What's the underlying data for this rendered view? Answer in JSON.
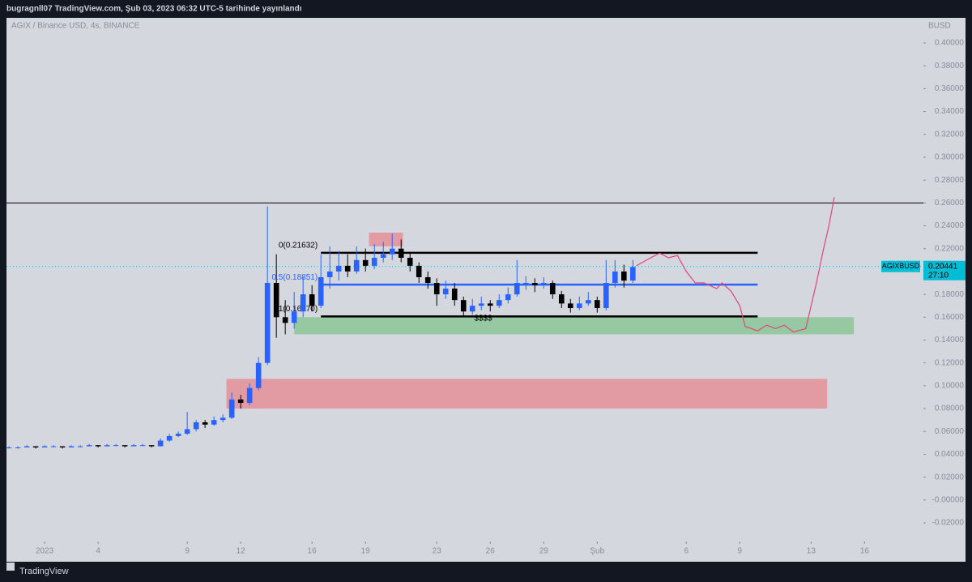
{
  "header": {
    "publisher": "bugragnll07 TradingView.com, Şub 03, 2023 06:32 UTC-5 tarihinde yayınlandı"
  },
  "footer": {
    "brand": "TradingView"
  },
  "chart_data": {
    "type": "candlestick",
    "title": "AGIX / Binance USD, 4s, BINANCE",
    "y_axis_label": "BUSD",
    "up_color": "#2962ff",
    "down_color": "#000000",
    "xlim": [
      -1.14,
      50.3
    ],
    "xticks": [
      {
        "value": 1,
        "label": "2023"
      },
      4,
      9,
      12,
      16,
      19,
      23,
      26,
      29,
      {
        "value": 32,
        "label": "Şub"
      },
      {
        "value": 37,
        "label": "6"
      },
      {
        "value": 40,
        "label": "9"
      },
      {
        "value": 44,
        "label": "13"
      },
      {
        "value": 47,
        "label": "16"
      }
    ],
    "ylim": [
      -0.0363,
      0.422
    ],
    "yticks": [
      {
        "value": 0.4,
        "label": "0.40000"
      },
      {
        "value": 0.38,
        "label": "0.38000"
      },
      {
        "value": 0.36,
        "label": "0.36000"
      },
      {
        "value": 0.34,
        "label": "0.34000"
      },
      {
        "value": 0.32,
        "label": "0.32000"
      },
      {
        "value": 0.3,
        "label": "0.30000"
      },
      {
        "value": 0.28,
        "label": "0.28000"
      },
      {
        "value": 0.26,
        "label": "0.26000"
      },
      {
        "value": 0.24,
        "label": "0.24000"
      },
      {
        "value": 0.22,
        "label": "0.22000"
      },
      {
        "value": 0.2,
        "label": "0.20000"
      },
      {
        "value": 0.18,
        "label": "0.18000"
      },
      {
        "value": 0.16,
        "label": "0.16000"
      },
      {
        "value": 0.14,
        "label": "0.14000"
      },
      {
        "value": 0.12,
        "label": "0.12000"
      },
      {
        "value": 0.1,
        "label": "0.10000"
      },
      {
        "value": 0.08,
        "label": "0.08000"
      },
      {
        "value": 0.06,
        "label": "0.06000"
      },
      {
        "value": 0.04,
        "label": "0.04000"
      },
      {
        "value": 0.02,
        "label": "0.02000"
      },
      {
        "value": 0,
        "label": "-0.00000"
      },
      {
        "value": -0.02,
        "label": "-0.02000"
      }
    ],
    "x": [
      -1,
      -0.5,
      0,
      0.5,
      1,
      1.5,
      2,
      2.5,
      3,
      3.5,
      4,
      4.5,
      5,
      5.5,
      6,
      6.5,
      7,
      7.5,
      8,
      8.5,
      9,
      9.5,
      10,
      10.5,
      11,
      11.5,
      12,
      12.5,
      13,
      13.5,
      14,
      14.5,
      15,
      15.5,
      16,
      16.5,
      17,
      17.5,
      18,
      18.5,
      19,
      19.5,
      20,
      20.5,
      21,
      21.5,
      22,
      22.5,
      23,
      23.5,
      24,
      24.5,
      25,
      25.5,
      26,
      26.5,
      27,
      27.5,
      28,
      28.5,
      29,
      29.5,
      30,
      30.5,
      31,
      31.5,
      32,
      32.5,
      33,
      33.5,
      34
    ],
    "ohlc": [
      [
        0.046,
        0.047,
        0.045,
        0.046
      ],
      [
        0.046,
        0.047,
        0.045,
        0.046
      ],
      [
        0.046,
        0.048,
        0.046,
        0.047
      ],
      [
        0.047,
        0.047,
        0.045,
        0.046
      ],
      [
        0.046,
        0.048,
        0.046,
        0.047
      ],
      [
        0.047,
        0.048,
        0.046,
        0.047
      ],
      [
        0.047,
        0.047,
        0.045,
        0.046
      ],
      [
        0.046,
        0.048,
        0.046,
        0.047
      ],
      [
        0.047,
        0.048,
        0.046,
        0.047
      ],
      [
        0.047,
        0.049,
        0.047,
        0.048
      ],
      [
        0.048,
        0.048,
        0.046,
        0.047
      ],
      [
        0.047,
        0.049,
        0.047,
        0.048
      ],
      [
        0.048,
        0.049,
        0.047,
        0.048
      ],
      [
        0.048,
        0.048,
        0.046,
        0.047
      ],
      [
        0.047,
        0.049,
        0.047,
        0.048
      ],
      [
        0.048,
        0.049,
        0.047,
        0.048
      ],
      [
        0.048,
        0.048,
        0.046,
        0.047
      ],
      [
        0.047,
        0.054,
        0.047,
        0.052
      ],
      [
        0.052,
        0.058,
        0.051,
        0.056
      ],
      [
        0.056,
        0.06,
        0.055,
        0.058
      ],
      [
        0.058,
        0.077,
        0.057,
        0.062
      ],
      [
        0.062,
        0.07,
        0.06,
        0.068
      ],
      [
        0.068,
        0.07,
        0.063,
        0.066
      ],
      [
        0.066,
        0.073,
        0.065,
        0.07
      ],
      [
        0.07,
        0.075,
        0.068,
        0.072
      ],
      [
        0.072,
        0.094,
        0.071,
        0.088
      ],
      [
        0.088,
        0.092,
        0.08,
        0.085
      ],
      [
        0.085,
        0.102,
        0.083,
        0.098
      ],
      [
        0.098,
        0.125,
        0.096,
        0.12
      ],
      [
        0.12,
        0.257,
        0.118,
        0.19
      ],
      [
        0.19,
        0.215,
        0.142,
        0.16
      ],
      [
        0.16,
        0.175,
        0.145,
        0.155
      ],
      [
        0.155,
        0.182,
        0.15,
        0.165
      ],
      [
        0.165,
        0.195,
        0.16,
        0.18
      ],
      [
        0.18,
        0.188,
        0.165,
        0.17
      ],
      [
        0.17,
        0.215,
        0.168,
        0.195
      ],
      [
        0.195,
        0.222,
        0.185,
        0.2
      ],
      [
        0.2,
        0.218,
        0.192,
        0.205
      ],
      [
        0.205,
        0.215,
        0.195,
        0.2
      ],
      [
        0.2,
        0.222,
        0.198,
        0.21
      ],
      [
        0.21,
        0.22,
        0.2,
        0.205
      ],
      [
        0.205,
        0.224,
        0.202,
        0.212
      ],
      [
        0.212,
        0.226,
        0.208,
        0.215
      ],
      [
        0.215,
        0.233,
        0.21,
        0.22
      ],
      [
        0.22,
        0.228,
        0.208,
        0.212
      ],
      [
        0.212,
        0.216,
        0.2,
        0.205
      ],
      [
        0.205,
        0.208,
        0.19,
        0.195
      ],
      [
        0.195,
        0.2,
        0.185,
        0.19
      ],
      [
        0.19,
        0.194,
        0.17,
        0.18
      ],
      [
        0.18,
        0.192,
        0.176,
        0.185
      ],
      [
        0.185,
        0.19,
        0.17,
        0.175
      ],
      [
        0.175,
        0.178,
        0.16,
        0.165
      ],
      [
        0.165,
        0.176,
        0.162,
        0.17
      ],
      [
        0.17,
        0.178,
        0.166,
        0.172
      ],
      [
        0.172,
        0.175,
        0.165,
        0.17
      ],
      [
        0.17,
        0.18,
        0.168,
        0.175
      ],
      [
        0.175,
        0.186,
        0.172,
        0.18
      ],
      [
        0.18,
        0.21,
        0.178,
        0.19
      ],
      [
        0.19,
        0.196,
        0.184,
        0.19
      ],
      [
        0.19,
        0.194,
        0.182,
        0.188
      ],
      [
        0.188,
        0.195,
        0.185,
        0.19
      ],
      [
        0.19,
        0.192,
        0.176,
        0.18
      ],
      [
        0.18,
        0.183,
        0.168,
        0.172
      ],
      [
        0.172,
        0.176,
        0.164,
        0.168
      ],
      [
        0.168,
        0.178,
        0.166,
        0.172
      ],
      [
        0.172,
        0.182,
        0.17,
        0.175
      ],
      [
        0.175,
        0.178,
        0.164,
        0.168
      ],
      [
        0.168,
        0.21,
        0.166,
        0.19
      ],
      [
        0.19,
        0.21,
        0.186,
        0.2
      ],
      [
        0.2,
        0.206,
        0.186,
        0.192
      ],
      [
        0.192,
        0.21,
        0.19,
        0.204
      ]
    ],
    "last_price": {
      "symbol": "AGIXBUSD",
      "value": 0.20441,
      "label": "0.20441",
      "countdown": "27:10",
      "color": "#00bcd4"
    },
    "hline": {
      "value": 0.26,
      "color": "#000000"
    },
    "fib": {
      "x": [
        16.5,
        41
      ],
      "levels": [
        {
          "value": 0.21632,
          "label": "0(0.21632)",
          "color": "#000000"
        },
        {
          "value": 0.18851,
          "label": "0.5(0.18851)",
          "color": "#2962ff"
        },
        {
          "value": 0.1607,
          "label": "1(0.16070)",
          "color": "#000000"
        }
      ]
    },
    "zones": [
      {
        "x": [
          15,
          46.4
        ],
        "y": [
          0.145,
          0.16
        ],
        "color": "#8fc79a"
      },
      {
        "x": [
          11.2,
          44.9
        ],
        "y": [
          0.08,
          0.106
        ],
        "color": "#e3959c"
      },
      {
        "x": [
          19.2,
          21.1
        ],
        "y": [
          0.222,
          0.234
        ],
        "color": "#e3959c"
      }
    ],
    "note": {
      "text": "$$$$",
      "x": 25.6,
      "y": 0.159
    },
    "projection": {
      "color": "#e0457b",
      "x": [
        34.2,
        35,
        35.5,
        36,
        36.5,
        37,
        37.5,
        38,
        38.7,
        39,
        39.5,
        40,
        40.3,
        41,
        41.5,
        42,
        42.5,
        43,
        43.7,
        44.3,
        44.7,
        45,
        45.3
      ],
      "y": [
        0.205,
        0.212,
        0.216,
        0.212,
        0.214,
        0.2,
        0.19,
        0.19,
        0.185,
        0.19,
        0.183,
        0.17,
        0.152,
        0.148,
        0.153,
        0.15,
        0.153,
        0.147,
        0.15,
        0.19,
        0.22,
        0.24,
        0.265
      ]
    }
  }
}
